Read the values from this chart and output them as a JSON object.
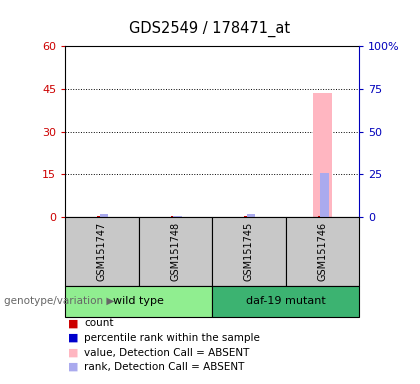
{
  "title": "GDS2549 / 178471_at",
  "samples": [
    "GSM151747",
    "GSM151748",
    "GSM151745",
    "GSM151746"
  ],
  "left_ticks": [
    0,
    15,
    30,
    45,
    60
  ],
  "right_ticks": [
    0,
    25,
    50,
    75,
    100
  ],
  "ylim_left": [
    0,
    60
  ],
  "ylim_right": [
    0,
    100
  ],
  "bar_data": {
    "GSM151747": {
      "value_absent": null,
      "rank_absent": 1.5,
      "count": 0.5,
      "pct_rank": 1.5
    },
    "GSM151748": {
      "value_absent": null,
      "rank_absent": 0.5,
      "count": 0.3,
      "pct_rank": 0.5
    },
    "GSM151745": {
      "value_absent": null,
      "rank_absent": 2.0,
      "count": 0.5,
      "pct_rank": 2.0
    },
    "GSM151746": {
      "value_absent": 43.5,
      "rank_absent": 26.0,
      "count": 0.5,
      "pct_rank": 26.0
    }
  },
  "groups": [
    {
      "start": 0,
      "end": 1,
      "label": "wild type",
      "color": "#90EE90"
    },
    {
      "start": 2,
      "end": 3,
      "label": "daf-19 mutant",
      "color": "#3CB371"
    }
  ],
  "legend_items": [
    {
      "label": "count",
      "color": "#CC0000"
    },
    {
      "label": "percentile rank within the sample",
      "color": "#0000CC"
    },
    {
      "label": "value, Detection Call = ABSENT",
      "color": "#FFB6C1"
    },
    {
      "label": "rank, Detection Call = ABSENT",
      "color": "#AAAAEE"
    }
  ],
  "left_color": "#CC0000",
  "right_color": "#0000BB",
  "sample_bg": "#C8C8C8",
  "bg_color": "#FFFFFF",
  "value_absent_color": "#FFB6C1",
  "rank_absent_color": "#AAAAEE",
  "count_color": "#CC0000",
  "pct_rank_color": "#0000CC"
}
